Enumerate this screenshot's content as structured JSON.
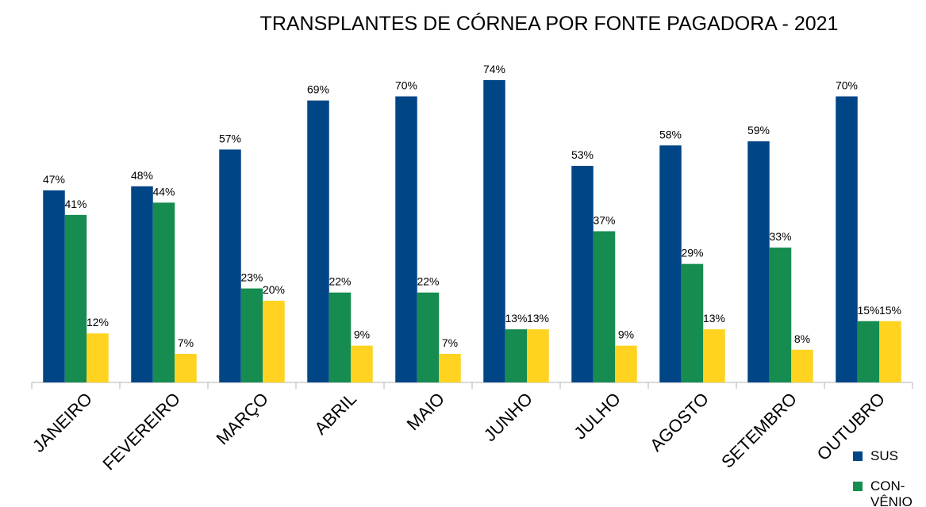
{
  "chart_data": {
    "type": "bar",
    "title": "TRANSPLANTES DE CÓRNEA POR FONTE PAGADORA - 2021",
    "categories": [
      "JANEIRO",
      "FEVEREIRO",
      "MARÇO",
      "ABRIL",
      "MAIO",
      "JUNHO",
      "JULHO",
      "AGOSTO",
      "SETEMBRO",
      "OUTUBRO"
    ],
    "series": [
      {
        "name": "SUS",
        "color": "#004586",
        "values": [
          47,
          48,
          57,
          69,
          70,
          74,
          53,
          58,
          59,
          70
        ],
        "value_labels": [
          "47%",
          "48%",
          "57%",
          "69%",
          "70%",
          "74%",
          "53%",
          "58%",
          "59%",
          "70%"
        ]
      },
      {
        "name": "CON-VÊNIO",
        "color": "#168c50",
        "values": [
          41,
          44,
          23,
          22,
          22,
          13,
          37,
          29,
          33,
          15
        ],
        "value_labels": [
          "41%",
          "44%",
          "23%",
          "22%",
          "22%",
          "13%",
          "37%",
          "29%",
          "33%",
          "15%"
        ]
      },
      {
        "color": "#ffd320",
        "values": [
          12,
          7,
          20,
          9,
          7,
          13,
          9,
          13,
          8,
          15
        ],
        "value_labels": [
          "12%",
          "7%",
          "20%",
          "9%",
          "7%",
          "13%",
          "9%",
          "13%",
          "8%",
          "15%"
        ]
      }
    ],
    "ylim": [
      0,
      80
    ],
    "grid": false
  }
}
